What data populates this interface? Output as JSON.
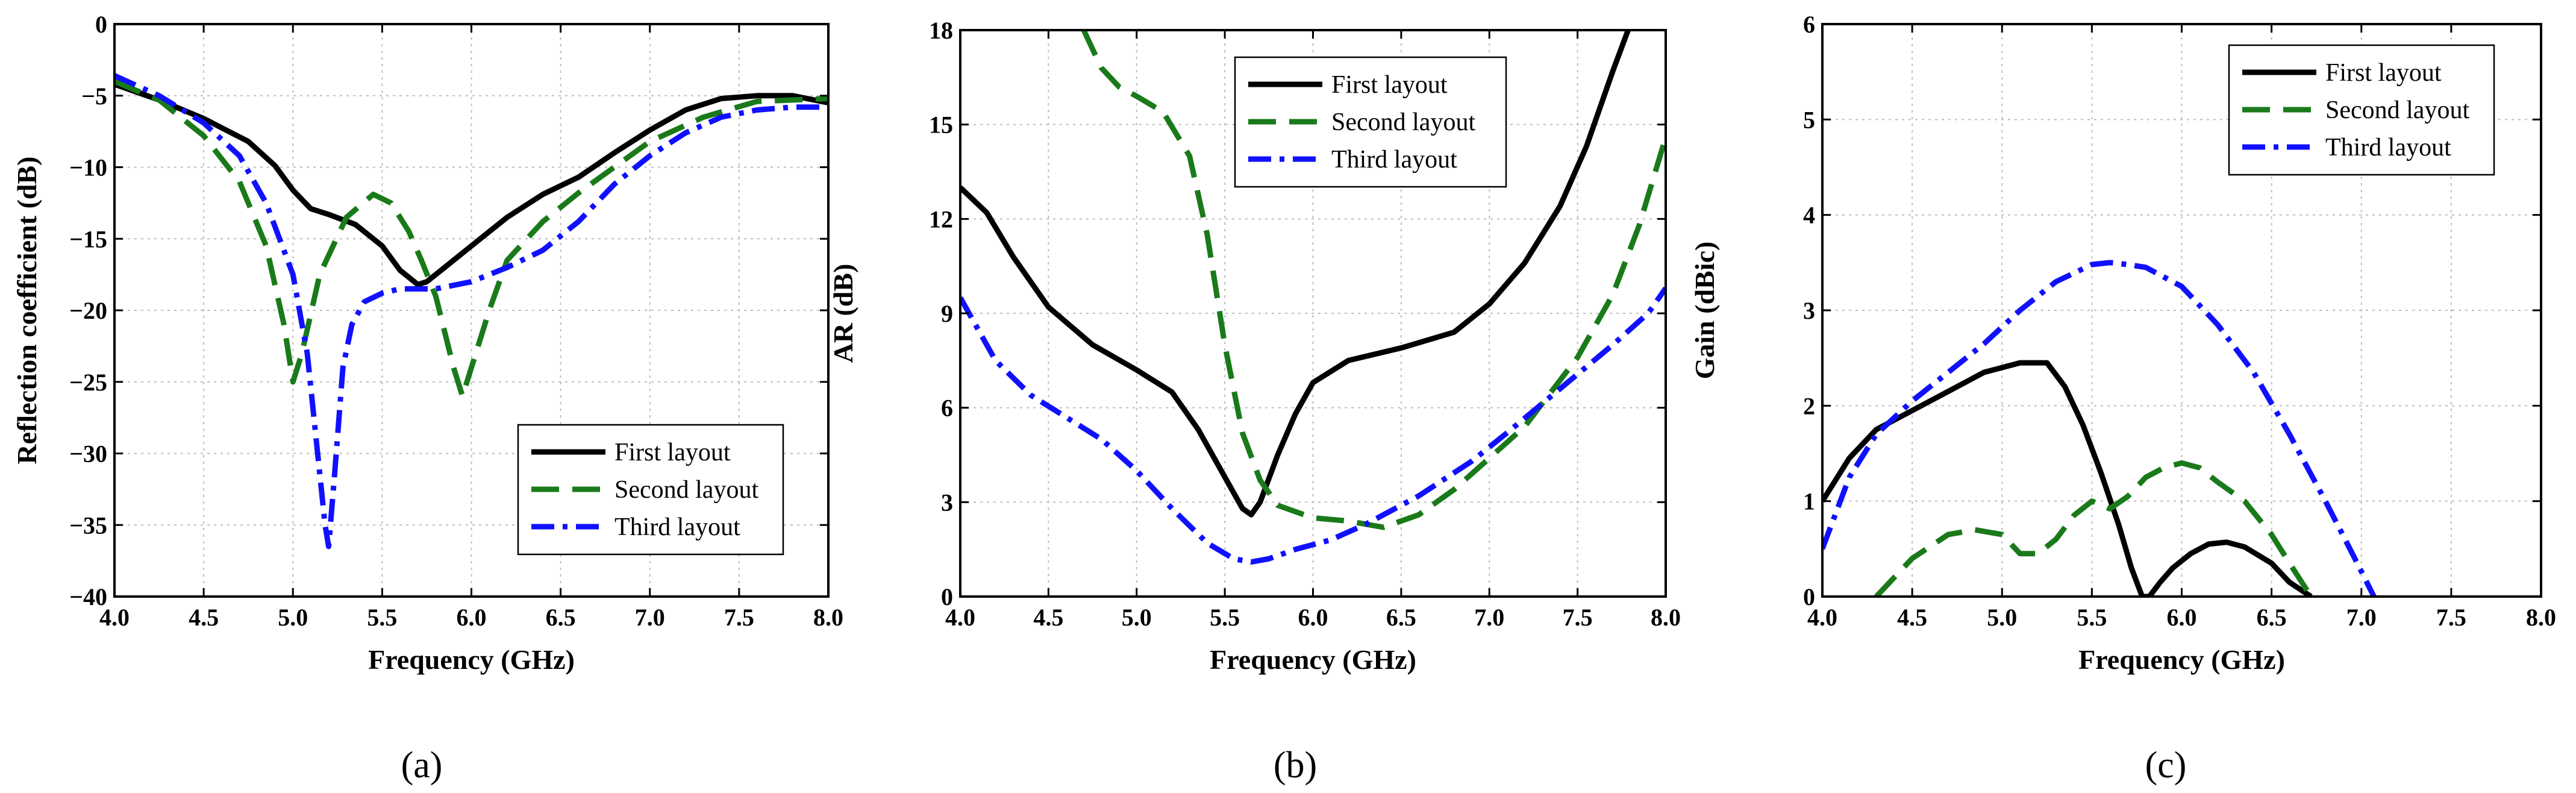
{
  "chart_data": [
    {
      "type": "line",
      "panel_label": "(a)",
      "xlabel": "Frequency (GHz)",
      "ylabel": "Reflection coefficient (dB)",
      "xlim": [
        4.0,
        8.0
      ],
      "ylim": [
        -40,
        0
      ],
      "xticks": [
        4.0,
        4.5,
        5.0,
        5.5,
        6.0,
        6.5,
        7.0,
        7.5,
        8.0
      ],
      "xtick_labels": [
        "4.0",
        "4.5",
        "5.0",
        "5.5",
        "6.0",
        "6.5",
        "7.0",
        "7.5",
        "8.0"
      ],
      "yticks": [
        0,
        -5,
        -10,
        -15,
        -20,
        -25,
        -30,
        -35,
        -40
      ],
      "ytick_labels": [
        "0",
        "−5",
        "−10",
        "−15",
        "−20",
        "−25",
        "−30",
        "−35",
        "−40"
      ],
      "grid": true,
      "legend_position": "bottom-right",
      "series": [
        {
          "name": "First layout",
          "color": "#000000",
          "style": "solid",
          "x": [
            4.0,
            4.25,
            4.5,
            4.75,
            4.9,
            5.0,
            5.1,
            5.2,
            5.35,
            5.5,
            5.6,
            5.7,
            5.75,
            5.85,
            6.0,
            6.2,
            6.4,
            6.6,
            6.8,
            7.0,
            7.2,
            7.4,
            7.6,
            7.8,
            8.0
          ],
          "y": [
            -4.2,
            -5.3,
            -6.6,
            -8.2,
            -9.9,
            -11.6,
            -12.9,
            -13.3,
            -14.0,
            -15.5,
            -17.2,
            -18.2,
            -18.0,
            -17.0,
            -15.5,
            -13.5,
            -11.9,
            -10.7,
            -9.0,
            -7.4,
            -6.0,
            -5.2,
            -5.0,
            -5.0,
            -5.5
          ]
        },
        {
          "name": "Second layout",
          "color": "#1a7a1a",
          "style": "dashed",
          "x": [
            4.0,
            4.25,
            4.5,
            4.7,
            4.85,
            4.95,
            5.0,
            5.05,
            5.15,
            5.3,
            5.45,
            5.55,
            5.65,
            5.72,
            5.8,
            5.85,
            5.9,
            5.95,
            6.0,
            6.1,
            6.2,
            6.4,
            6.6,
            6.8,
            7.0,
            7.3,
            7.6,
            8.0
          ],
          "y": [
            -4.0,
            -5.3,
            -7.8,
            -11.0,
            -15.5,
            -21.0,
            -25.0,
            -23.0,
            -17.5,
            -13.5,
            -11.9,
            -12.5,
            -14.5,
            -16.5,
            -19.0,
            -21.5,
            -24.0,
            -26.0,
            -24.0,
            -20.0,
            -16.5,
            -13.8,
            -11.8,
            -10.0,
            -8.2,
            -6.5,
            -5.4,
            -5.2
          ]
        },
        {
          "name": "Third layout",
          "color": "#1010ff",
          "style": "dashdot",
          "x": [
            4.0,
            4.25,
            4.5,
            4.7,
            4.85,
            5.0,
            5.08,
            5.13,
            5.18,
            5.2,
            5.23,
            5.28,
            5.33,
            5.4,
            5.5,
            5.6,
            5.7,
            5.8,
            6.0,
            6.2,
            6.4,
            6.6,
            6.8,
            7.0,
            7.2,
            7.4,
            7.6,
            7.8,
            8.0
          ],
          "y": [
            -3.6,
            -5.0,
            -6.9,
            -9.2,
            -12.5,
            -17.5,
            -23.0,
            -29.0,
            -35.0,
            -36.5,
            -32.0,
            -24.0,
            -21.0,
            -19.4,
            -18.8,
            -18.5,
            -18.5,
            -18.5,
            -18.0,
            -17.0,
            -15.8,
            -13.8,
            -11.2,
            -9.2,
            -7.6,
            -6.5,
            -6.0,
            -5.8,
            -5.8
          ]
        }
      ]
    },
    {
      "type": "line",
      "panel_label": "(b)",
      "xlabel": "Frequency (GHz)",
      "ylabel": "AR (dB)",
      "xlim": [
        4.0,
        8.0
      ],
      "ylim": [
        0,
        18
      ],
      "xticks": [
        4.0,
        4.5,
        5.0,
        5.5,
        6.0,
        6.5,
        7.0,
        7.5,
        8.0
      ],
      "xtick_labels": [
        "4.0",
        "4.5",
        "5.0",
        "5.5",
        "6.0",
        "6.5",
        "7.0",
        "7.5",
        "8.0"
      ],
      "yticks": [
        0,
        3,
        6,
        9,
        12,
        15,
        18
      ],
      "ytick_labels": [
        "0",
        "3",
        "6",
        "9",
        "12",
        "15",
        "18"
      ],
      "grid": true,
      "legend_position": "top-center",
      "series": [
        {
          "name": "First layout",
          "color": "#000000",
          "style": "solid",
          "x": [
            4.0,
            4.15,
            4.3,
            4.5,
            4.75,
            5.0,
            5.2,
            5.35,
            5.5,
            5.6,
            5.65,
            5.7,
            5.8,
            5.9,
            6.0,
            6.2,
            6.5,
            6.8,
            7.0,
            7.2,
            7.4,
            7.55,
            7.7,
            7.8
          ],
          "y": [
            13.0,
            12.2,
            10.8,
            9.2,
            8.0,
            7.2,
            6.5,
            5.3,
            3.8,
            2.8,
            2.6,
            3.0,
            4.5,
            5.8,
            6.8,
            7.5,
            7.9,
            8.4,
            9.3,
            10.6,
            12.4,
            14.3,
            16.7,
            18.2
          ]
        },
        {
          "name": "Second layout",
          "color": "#1a7a1a",
          "style": "dashed",
          "x": [
            4.7,
            4.8,
            4.9,
            5.0,
            5.15,
            5.3,
            5.4,
            5.5,
            5.6,
            5.7,
            5.8,
            6.0,
            6.2,
            6.4,
            6.6,
            6.8,
            7.0,
            7.2,
            7.5,
            7.7,
            7.85,
            8.0
          ],
          "y": [
            18.0,
            16.8,
            16.2,
            15.9,
            15.4,
            14.0,
            11.5,
            8.0,
            5.2,
            3.7,
            2.9,
            2.5,
            2.4,
            2.2,
            2.6,
            3.4,
            4.4,
            5.4,
            7.6,
            9.6,
            11.8,
            14.6
          ]
        },
        {
          "name": "Third layout",
          "color": "#1010ff",
          "style": "dashdot",
          "x": [
            4.0,
            4.2,
            4.4,
            4.6,
            4.8,
            5.0,
            5.2,
            5.4,
            5.55,
            5.65,
            5.75,
            5.9,
            6.1,
            6.3,
            6.6,
            6.9,
            7.1,
            7.4,
            7.7,
            7.9,
            8.0
          ],
          "y": [
            9.5,
            7.5,
            6.4,
            5.7,
            5.0,
            4.0,
            2.8,
            1.7,
            1.2,
            1.1,
            1.2,
            1.5,
            1.8,
            2.3,
            3.2,
            4.3,
            5.2,
            6.6,
            8.0,
            9.0,
            9.8
          ]
        }
      ]
    },
    {
      "type": "line",
      "panel_label": "(c)",
      "xlabel": "Frequency (GHz)",
      "ylabel": "Gain (dBic)",
      "xlim": [
        4.0,
        8.0
      ],
      "ylim": [
        0,
        6
      ],
      "xticks": [
        4.0,
        4.5,
        5.0,
        5.5,
        6.0,
        6.5,
        7.0,
        7.5,
        8.0
      ],
      "xtick_labels": [
        "4.0",
        "4.5",
        "5.0",
        "5.5",
        "6.0",
        "6.5",
        "7.0",
        "7.5",
        "8.0"
      ],
      "yticks": [
        0,
        1,
        2,
        3,
        4,
        5,
        6
      ],
      "ytick_labels": [
        "0",
        "1",
        "2",
        "3",
        "4",
        "5",
        "6"
      ],
      "grid": true,
      "legend_position": "top-left",
      "series": [
        {
          "name": "First layout",
          "color": "#000000",
          "style": "solid",
          "x": [
            4.0,
            4.15,
            4.3,
            4.5,
            4.7,
            4.9,
            5.1,
            5.25,
            5.35,
            5.45,
            5.55,
            5.65,
            5.72,
            5.78,
            5.82,
            5.88,
            5.95,
            6.05,
            6.15,
            6.25,
            6.35,
            6.5,
            6.6,
            6.72
          ],
          "y": [
            1.0,
            1.45,
            1.75,
            1.95,
            2.15,
            2.35,
            2.45,
            2.45,
            2.2,
            1.8,
            1.3,
            0.75,
            0.3,
            0.0,
            0.0,
            0.15,
            0.3,
            0.45,
            0.55,
            0.57,
            0.52,
            0.35,
            0.15,
            0.0
          ]
        },
        {
          "name": "Second layout",
          "color": "#1a7a1a",
          "style": "dashed",
          "x": [
            4.3,
            4.5,
            4.7,
            4.85,
            5.0,
            5.1,
            5.2,
            5.3,
            5.4,
            5.5,
            5.6,
            5.7,
            5.8,
            5.9,
            6.0,
            6.1,
            6.2,
            6.35,
            6.5,
            6.6,
            6.72
          ],
          "y": [
            0.0,
            0.4,
            0.65,
            0.7,
            0.65,
            0.45,
            0.45,
            0.6,
            0.85,
            1.0,
            0.92,
            1.05,
            1.25,
            1.35,
            1.4,
            1.35,
            1.2,
            1.0,
            0.65,
            0.35,
            0.0
          ]
        },
        {
          "name": "Third layout",
          "color": "#1010ff",
          "style": "dashdot",
          "x": [
            4.0,
            4.15,
            4.3,
            4.5,
            4.7,
            4.9,
            5.1,
            5.3,
            5.5,
            5.6,
            5.7,
            5.8,
            5.9,
            6.0,
            6.2,
            6.4,
            6.6,
            6.8,
            6.95,
            7.07
          ],
          "y": [
            0.5,
            1.25,
            1.7,
            2.05,
            2.35,
            2.65,
            3.0,
            3.3,
            3.48,
            3.5,
            3.48,
            3.45,
            3.35,
            3.25,
            2.85,
            2.35,
            1.7,
            1.0,
            0.45,
            0.0
          ]
        }
      ]
    }
  ]
}
